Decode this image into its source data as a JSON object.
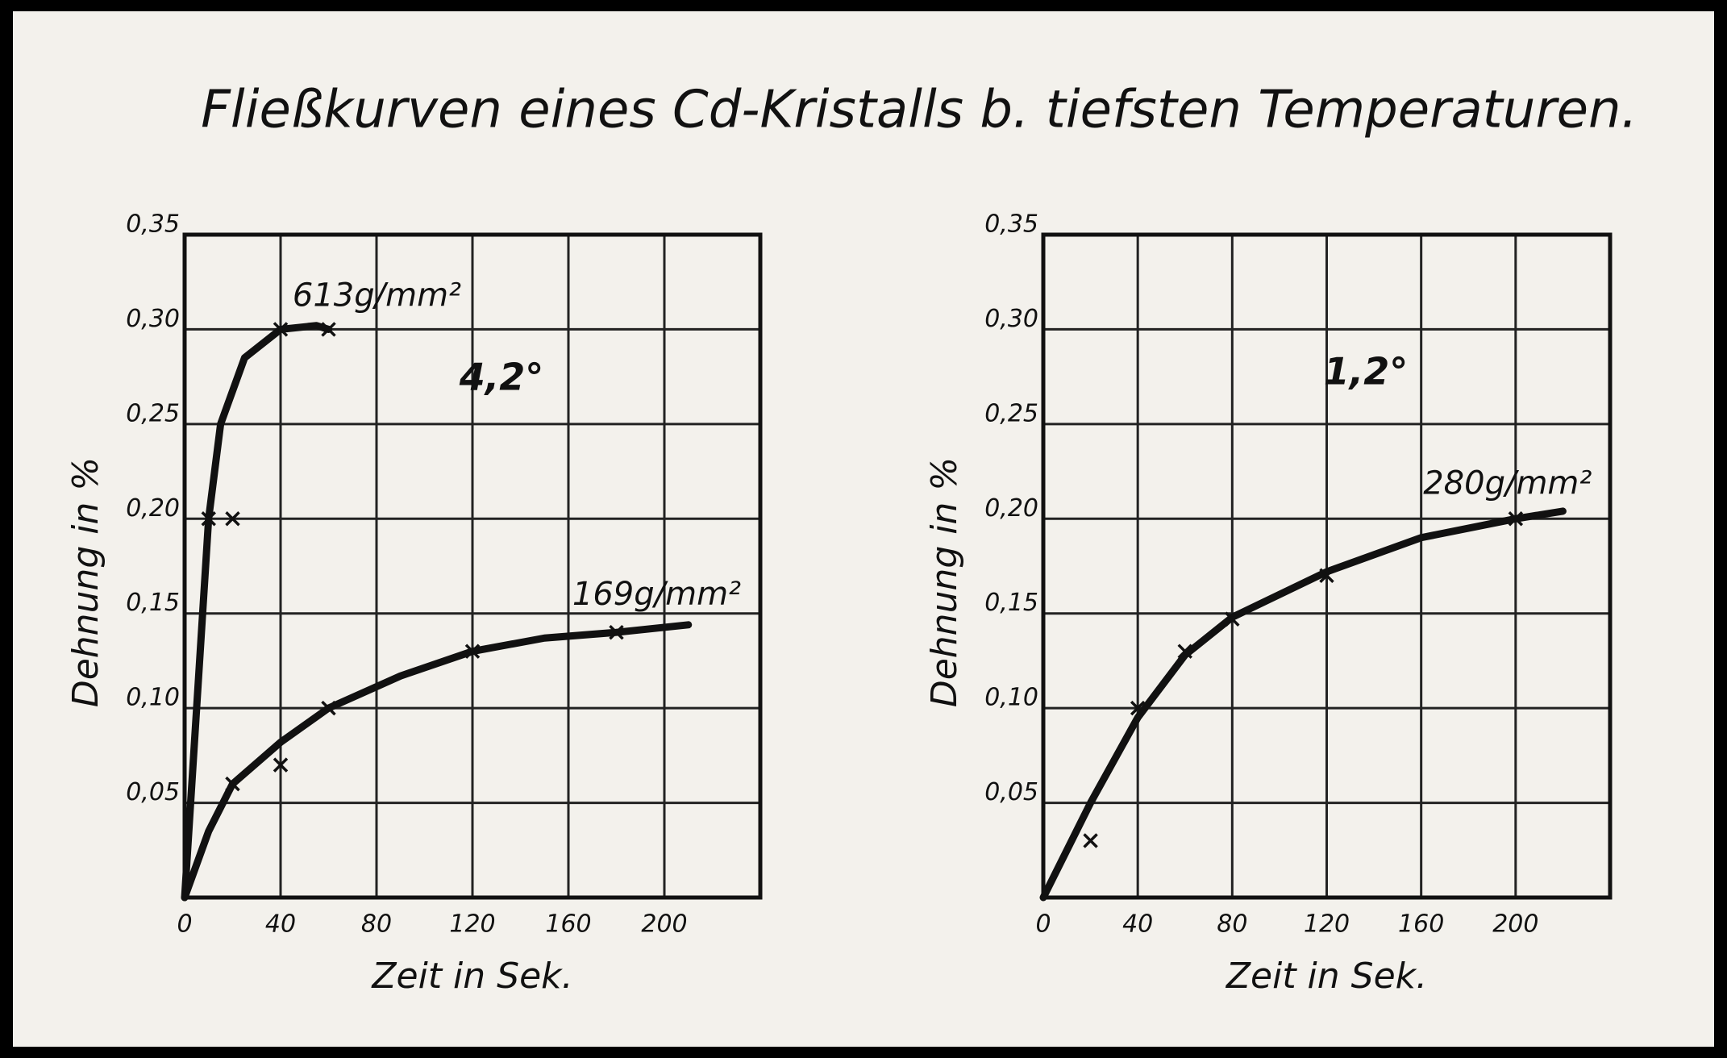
{
  "title": "Fließkurven eines Cd-Kristalls b. tiefsten Temperaturen.",
  "chart_data": [
    {
      "type": "line",
      "annotation": "4,2°",
      "x_label": "Zeit in Sek.",
      "y_label": "Dehnung in %",
      "xlim": [
        0,
        240
      ],
      "xticks": [
        0,
        40,
        80,
        120,
        160,
        200
      ],
      "ylim": [
        0,
        0.35
      ],
      "yticks": [
        {
          "value": 0.05,
          "label": "0,05"
        },
        {
          "value": 0.1,
          "label": "0,10"
        },
        {
          "value": 0.15,
          "label": "0,15"
        },
        {
          "value": 0.2,
          "label": "0,20"
        },
        {
          "value": 0.25,
          "label": "0,25"
        },
        {
          "value": 0.3,
          "label": "0,30"
        },
        {
          "value": 0.35,
          "label": "0,35"
        }
      ],
      "grid": true,
      "color": "#111111",
      "series": [
        {
          "name": "613g/mm²",
          "x": [
            10,
            20,
            40,
            60
          ],
          "values": [
            0.2,
            0.2,
            0.3,
            0.3
          ],
          "curve_x": [
            0,
            5,
            10,
            15,
            25,
            40,
            55,
            60
          ],
          "curve_values": [
            0,
            0.1,
            0.2,
            0.25,
            0.285,
            0.3,
            0.302,
            0.3
          ]
        },
        {
          "name": "169g/mm²",
          "x": [
            20,
            40,
            60,
            120,
            180
          ],
          "values": [
            0.06,
            0.07,
            0.1,
            0.13,
            0.14
          ],
          "curve_x": [
            0,
            10,
            20,
            40,
            60,
            90,
            120,
            150,
            180,
            210
          ],
          "curve_values": [
            0,
            0.035,
            0.06,
            0.082,
            0.1,
            0.117,
            0.13,
            0.137,
            0.14,
            0.144
          ]
        }
      ]
    },
    {
      "type": "line",
      "annotation": "1,2°",
      "x_label": "Zeit in Sek.",
      "y_label": "Dehnung in %",
      "xlim": [
        0,
        240
      ],
      "xticks": [
        0,
        40,
        80,
        120,
        160,
        200
      ],
      "ylim": [
        0,
        0.35
      ],
      "yticks": [
        {
          "value": 0.05,
          "label": "0,05"
        },
        {
          "value": 0.1,
          "label": "0,10"
        },
        {
          "value": 0.15,
          "label": "0,15"
        },
        {
          "value": 0.2,
          "label": "0,20"
        },
        {
          "value": 0.25,
          "label": "0,25"
        },
        {
          "value": 0.3,
          "label": "0,30"
        },
        {
          "value": 0.35,
          "label": "0,35"
        }
      ],
      "grid": true,
      "color": "#111111",
      "series": [
        {
          "name": "280g/mm²",
          "x": [
            20,
            40,
            60,
            80,
            120,
            200
          ],
          "values": [
            0.03,
            0.1,
            0.13,
            0.147,
            0.17,
            0.2
          ],
          "curve_x": [
            0,
            20,
            40,
            60,
            80,
            120,
            160,
            200,
            220
          ],
          "curve_values": [
            0,
            0.05,
            0.095,
            0.128,
            0.148,
            0.172,
            0.19,
            0.2,
            0.204
          ]
        }
      ]
    }
  ]
}
